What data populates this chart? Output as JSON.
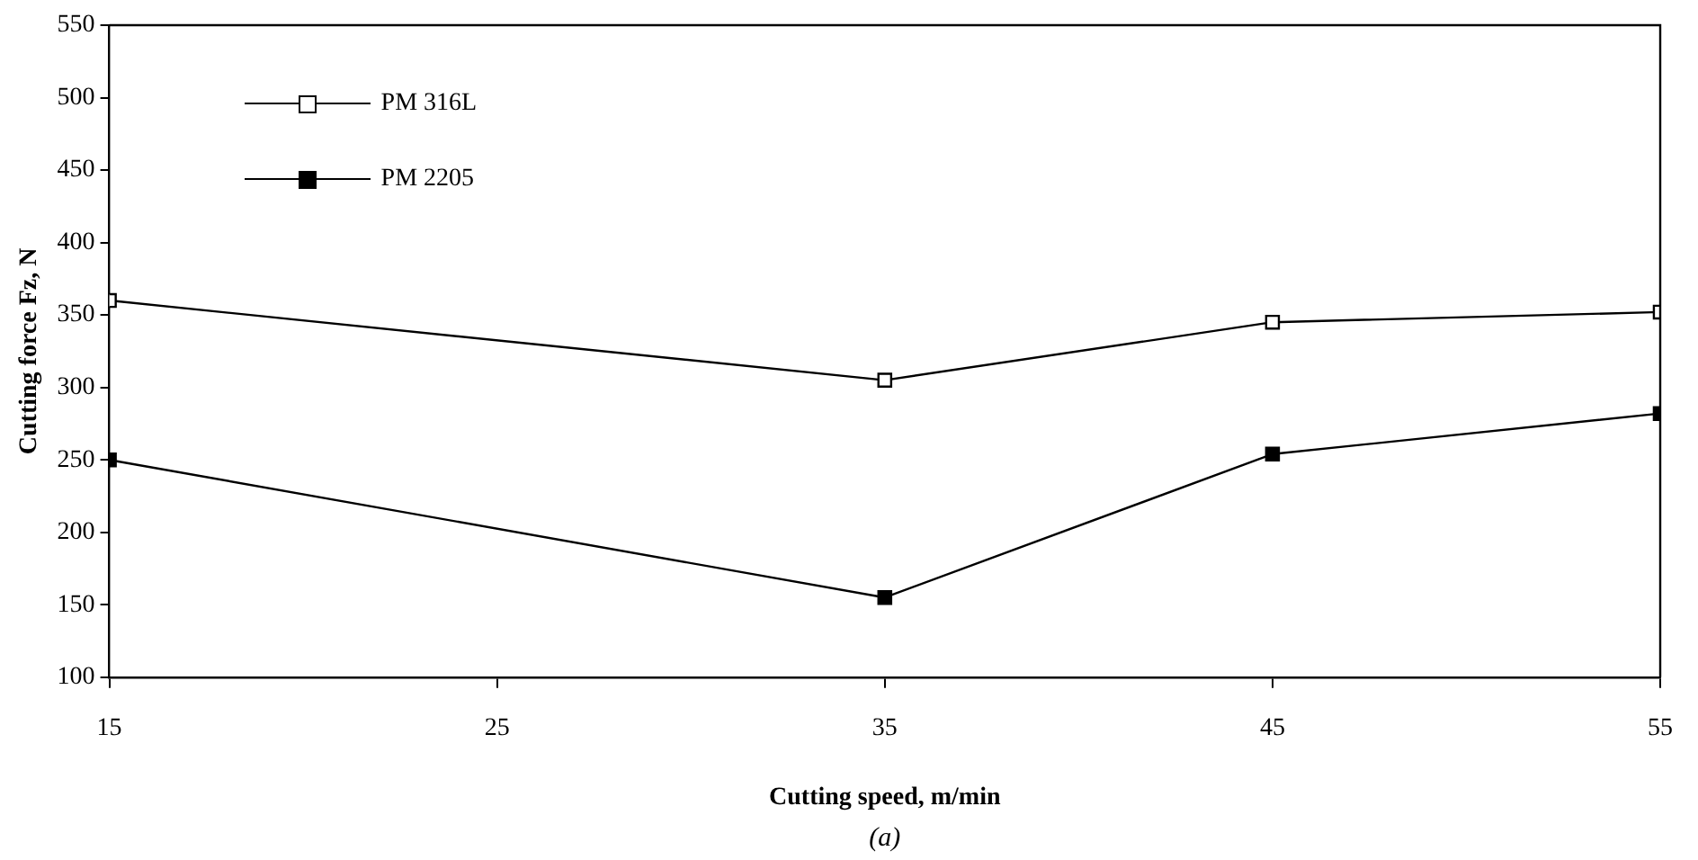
{
  "chart_data": {
    "type": "line",
    "xlabel": "Cutting speed, m/min",
    "ylabel": "Cutting force Fz, N",
    "x": [
      15,
      35,
      45,
      55
    ],
    "series": [
      {
        "name": "PM 316L",
        "color": "#000000",
        "values": [
          360,
          305,
          345,
          352
        ]
      },
      {
        "name": "PM 2205",
        "color": "#000000",
        "values": [
          250,
          155,
          254,
          282
        ]
      }
    ],
    "xlim": [
      15,
      55
    ],
    "xticks": [
      15,
      25,
      35,
      45,
      55
    ],
    "ylim": [
      100,
      550
    ],
    "yticks": [
      100,
      150,
      200,
      250,
      300,
      350,
      400,
      450,
      500,
      550
    ],
    "grid": false,
    "legend": "top left",
    "marker": "square",
    "line_style": "solid",
    "annotations": [
      "(a)"
    ]
  }
}
